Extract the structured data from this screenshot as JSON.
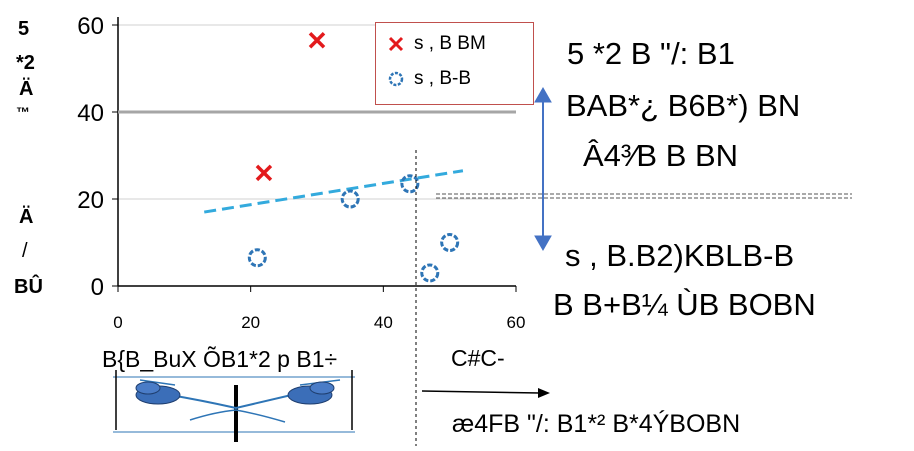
{
  "chart_data": {
    "type": "scatter",
    "xlim": [
      0,
      60
    ],
    "ylim": [
      0,
      60
    ],
    "x_ticks": [
      "0",
      "20",
      "40",
      "60"
    ],
    "y_ticks": [
      "0",
      "20",
      "40",
      "60"
    ],
    "ylabel": "5 *2 Ä ™ Ä / BÛ",
    "ylabel_lines": [
      "5",
      "*2",
      "Ä",
      "™",
      "Ä",
      "/",
      "BÛ"
    ],
    "xlabel": "B{B_BuX ÕB1*2 p B1÷",
    "grid": "horizontal",
    "legend_position": "top-right",
    "series": [
      {
        "name": "s , B BM",
        "marker": "x",
        "color": "#e31a1c",
        "points": [
          [
            30,
            56.5
          ],
          [
            22,
            26
          ]
        ]
      },
      {
        "name": "s , B-B",
        "marker": "circle",
        "color": "#2e75b6",
        "points": [
          [
            21,
            6.5
          ],
          [
            35,
            20
          ],
          [
            44,
            23.5
          ],
          [
            47,
            3
          ],
          [
            50,
            10
          ]
        ]
      }
    ],
    "trendline": {
      "style": "dashed",
      "color": "#33aadd",
      "x": [
        13,
        52
      ],
      "y": [
        17,
        26.5
      ]
    },
    "threshold_line": {
      "y": 40,
      "color": "#a6a6a6"
    }
  },
  "annotations": {
    "right_block_line1": "5 *2 B   \"/:   B1",
    "right_block_line2": "BAB*¿ B6B*)  BN",
    "right_block_line3": "Â4³⁄B B BN",
    "lower_right_line1": "s ,   B.B2)KBLB-B",
    "lower_right_line2": "B B+B¼ ÙB BOBN",
    "arrow_label": "C#C-",
    "bottom_line": "æ4FB  \"/:   B1*² B*4ÝBOBN"
  }
}
